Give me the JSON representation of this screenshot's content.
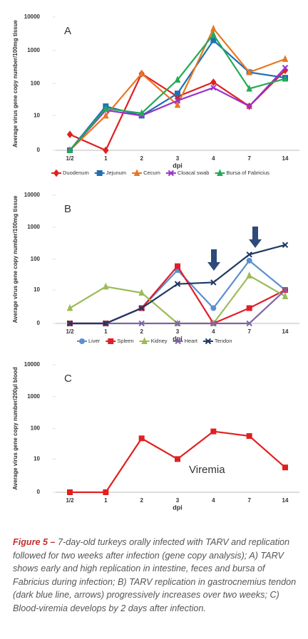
{
  "chart_data": [
    {
      "type": "line",
      "label": "A",
      "ylabel": "Average virus gene copy number/100mg tissue",
      "xlabel": "dpi",
      "categories": [
        "1/2",
        "1",
        "2",
        "3",
        "4",
        "7",
        "14"
      ],
      "yscale": "log",
      "ylim": [
        0,
        10000
      ],
      "yticks": [
        0,
        10,
        100,
        1000,
        10000
      ],
      "series": [
        {
          "name": "Duodenum",
          "color": "#e02020",
          "marker": "diamond",
          "values": [
            2,
            0,
            200,
            40,
            110,
            20,
            250
          ]
        },
        {
          "name": "Jejunum",
          "color": "#1f6fb5",
          "marker": "square",
          "values": [
            0,
            20,
            10,
            50,
            2000,
            220,
            150
          ]
        },
        {
          "name": "Cecum",
          "color": "#e87722",
          "marker": "triangle",
          "values": [
            0,
            10,
            200,
            22,
            4500,
            220,
            550
          ]
        },
        {
          "name": "Cloacal swab",
          "color": "#9933cc",
          "marker": "x",
          "values": [
            0,
            15,
            10,
            30,
            75,
            20,
            300
          ]
        },
        {
          "name": "Bursa of Fabricius",
          "color": "#22aa55",
          "marker": "triangle",
          "values": [
            0,
            17,
            12,
            130,
            3000,
            70,
            140
          ]
        }
      ]
    },
    {
      "type": "line",
      "label": "B",
      "ylabel": "Average virus gene copy number/100mg tissue",
      "xlabel": "dpi",
      "categories": [
        "1/2",
        "1",
        "2",
        "3",
        "4",
        "7",
        "14"
      ],
      "yscale": "log",
      "ylim": [
        0,
        10000
      ],
      "yticks": [
        0,
        10,
        100,
        1000,
        10000
      ],
      "series": [
        {
          "name": "Liver",
          "color": "#5b8fd0",
          "marker": "circle",
          "values": [
            0,
            0,
            2,
            45,
            2,
            90,
            10
          ]
        },
        {
          "name": "Spleen",
          "color": "#e01e2a",
          "marker": "square",
          "values": [
            0,
            0,
            2,
            60,
            0,
            2,
            10
          ]
        },
        {
          "name": "Kidney",
          "color": "#9bbb59",
          "marker": "triangle",
          "values": [
            2,
            13,
            8,
            0,
            0,
            30,
            6
          ]
        },
        {
          "name": "Heart",
          "color": "#8064a2",
          "marker": "x",
          "values": [
            0,
            0,
            0,
            0,
            0,
            0,
            10
          ]
        },
        {
          "name": "Tendon",
          "color": "#1f3864",
          "marker": "x",
          "values": [
            0,
            0,
            2,
            16,
            18,
            140,
            280
          ]
        }
      ]
    },
    {
      "type": "line",
      "label": "C",
      "ylabel": "Average virus gene copy number/200µl blood",
      "xlabel": "dpi",
      "categories": [
        "1/2",
        "1",
        "2",
        "3",
        "4",
        "7",
        "14"
      ],
      "yscale": "log",
      "ylim": [
        0,
        10000
      ],
      "yticks": [
        0,
        10,
        100,
        1000,
        10000
      ],
      "annotation": "Viremia",
      "color": "#e02020",
      "marker": "square",
      "values": [
        0,
        0,
        48,
        10,
        80,
        57,
        5
      ]
    }
  ],
  "caption": {
    "label": "Figure 5 –",
    "text": "7-day-old turkeys orally infected with TARV and replication followed for two weeks after infection (gene copy analysis); A) TARV shows early and high replication in intestine, feces and bursa of Fabricius during infection; B) TARV replication in gastrocnemius tendon (dark blue line, arrows) progressively increases over two weeks; C) Blood-viremia develops by 2 days after infection."
  }
}
